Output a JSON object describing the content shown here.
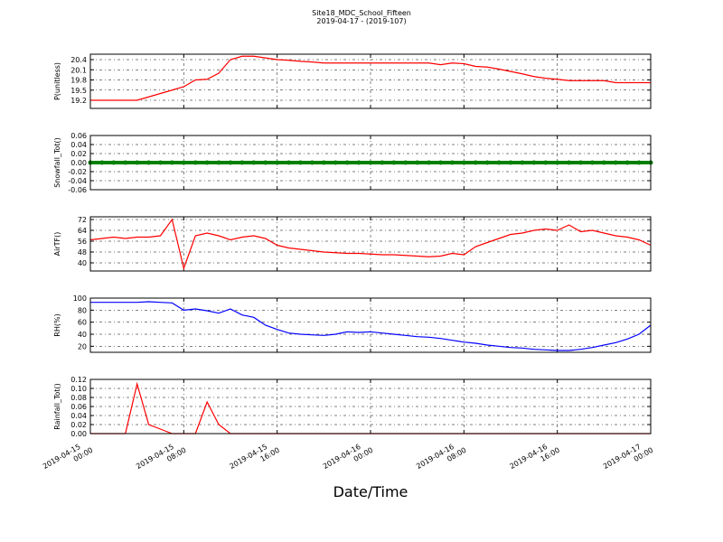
{
  "figure": {
    "title": "Site18_MDC_School_Fifteen",
    "subtitle": "2019-04-17 - (2019-107)",
    "xlabel": "Date/Time"
  },
  "chart_data": [
    {
      "type": "line",
      "ylabel": "P(unitless)",
      "color": "#ff0000",
      "x": [
        "2019-04-15 00:00",
        "2019-04-15 01:00",
        "2019-04-15 02:00",
        "2019-04-15 03:00",
        "2019-04-15 04:00",
        "2019-04-15 05:00",
        "2019-04-15 06:00",
        "2019-04-15 07:00",
        "2019-04-15 08:00",
        "2019-04-15 09:00",
        "2019-04-15 10:00",
        "2019-04-15 11:00",
        "2019-04-15 12:00",
        "2019-04-15 13:00",
        "2019-04-15 14:00",
        "2019-04-15 15:00",
        "2019-04-15 16:00",
        "2019-04-15 17:00",
        "2019-04-15 18:00",
        "2019-04-15 19:00",
        "2019-04-15 20:00",
        "2019-04-15 21:00",
        "2019-04-15 22:00",
        "2019-04-15 23:00",
        "2019-04-16 00:00",
        "2019-04-16 01:00",
        "2019-04-16 02:00",
        "2019-04-16 03:00",
        "2019-04-16 04:00",
        "2019-04-16 05:00",
        "2019-04-16 06:00",
        "2019-04-16 07:00",
        "2019-04-16 08:00",
        "2019-04-16 09:00",
        "2019-04-16 10:00",
        "2019-04-16 11:00",
        "2019-04-16 12:00",
        "2019-04-16 13:00",
        "2019-04-16 14:00",
        "2019-04-16 15:00",
        "2019-04-16 16:00",
        "2019-04-16 17:00",
        "2019-04-16 18:00",
        "2019-04-16 19:00",
        "2019-04-16 20:00",
        "2019-04-16 21:00",
        "2019-04-16 22:00",
        "2019-04-16 23:00",
        "2019-04-17 00:00"
      ],
      "values": [
        19.2,
        19.2,
        19.2,
        19.2,
        19.2,
        19.3,
        19.4,
        19.5,
        19.6,
        19.8,
        19.82,
        20.0,
        20.4,
        20.5,
        20.5,
        20.45,
        20.4,
        20.38,
        20.35,
        20.33,
        20.3,
        20.3,
        20.3,
        20.3,
        20.3,
        20.3,
        20.3,
        20.3,
        20.3,
        20.3,
        20.25,
        20.3,
        20.28,
        20.2,
        20.18,
        20.12,
        20.05,
        19.98,
        19.9,
        19.85,
        19.82,
        19.78,
        19.78,
        19.78,
        19.78,
        19.72,
        19.72,
        19.72,
        19.72
      ],
      "xlim": [
        "2019-04-15 00:00",
        "2019-04-17 00:00"
      ],
      "xticks": [
        "2019-04-15 00:00",
        "2019-04-15 08:00",
        "2019-04-15 16:00",
        "2019-04-16 00:00",
        "2019-04-16 08:00",
        "2019-04-16 16:00",
        "2019-04-17 00:00"
      ],
      "ylim": [
        18.96,
        20.56
      ],
      "yticks": [
        19.2,
        19.5,
        19.8,
        20.1,
        20.4
      ],
      "grid": true
    },
    {
      "type": "scatter",
      "ylabel": "Snowfall_Tot()",
      "color": "#008000",
      "x": [
        "2019-04-15 00:00",
        "2019-04-15 01:00",
        "2019-04-15 02:00",
        "2019-04-15 03:00",
        "2019-04-15 04:00",
        "2019-04-15 05:00",
        "2019-04-15 06:00",
        "2019-04-15 07:00",
        "2019-04-15 08:00",
        "2019-04-15 09:00",
        "2019-04-15 10:00",
        "2019-04-15 11:00",
        "2019-04-15 12:00",
        "2019-04-15 13:00",
        "2019-04-15 14:00",
        "2019-04-15 15:00",
        "2019-04-15 16:00",
        "2019-04-15 17:00",
        "2019-04-15 18:00",
        "2019-04-15 19:00",
        "2019-04-15 20:00",
        "2019-04-15 21:00",
        "2019-04-15 22:00",
        "2019-04-15 23:00",
        "2019-04-16 00:00",
        "2019-04-16 01:00",
        "2019-04-16 02:00",
        "2019-04-16 03:00",
        "2019-04-16 04:00",
        "2019-04-16 05:00",
        "2019-04-16 06:00",
        "2019-04-16 07:00",
        "2019-04-16 08:00",
        "2019-04-16 09:00",
        "2019-04-16 10:00",
        "2019-04-16 11:00",
        "2019-04-16 12:00",
        "2019-04-16 13:00",
        "2019-04-16 14:00",
        "2019-04-16 15:00",
        "2019-04-16 16:00",
        "2019-04-16 17:00",
        "2019-04-16 18:00",
        "2019-04-16 19:00",
        "2019-04-16 20:00",
        "2019-04-16 21:00",
        "2019-04-16 22:00",
        "2019-04-16 23:00",
        "2019-04-17 00:00"
      ],
      "values": [
        0,
        0,
        0,
        0,
        0,
        0,
        0,
        0,
        0,
        0,
        0,
        0,
        0,
        0,
        0,
        0,
        0,
        0,
        0,
        0,
        0,
        0,
        0,
        0,
        0,
        0,
        0,
        0,
        0,
        0,
        0,
        0,
        0,
        0,
        0,
        0,
        0,
        0,
        0,
        0,
        0,
        0,
        0,
        0,
        0,
        0,
        0,
        0,
        0
      ],
      "xlim": [
        "2019-04-15 00:00",
        "2019-04-17 00:00"
      ],
      "xticks": [
        "2019-04-15 00:00",
        "2019-04-15 08:00",
        "2019-04-15 16:00",
        "2019-04-16 00:00",
        "2019-04-16 08:00",
        "2019-04-16 16:00",
        "2019-04-17 00:00"
      ],
      "ylim": [
        -0.06,
        0.06
      ],
      "yticks": [
        -0.06,
        -0.04,
        -0.02,
        {
          "value": 0,
          "label": "0.00"
        },
        0.02,
        0.04,
        0.06
      ],
      "grid": true
    },
    {
      "type": "line",
      "ylabel": "AirTF()",
      "color": "#ff0000",
      "x": [
        "2019-04-15 00:00",
        "2019-04-15 01:00",
        "2019-04-15 02:00",
        "2019-04-15 03:00",
        "2019-04-15 04:00",
        "2019-04-15 05:00",
        "2019-04-15 06:00",
        "2019-04-15 07:00",
        "2019-04-15 08:00",
        "2019-04-15 09:00",
        "2019-04-15 10:00",
        "2019-04-15 11:00",
        "2019-04-15 12:00",
        "2019-04-15 13:00",
        "2019-04-15 14:00",
        "2019-04-15 15:00",
        "2019-04-15 16:00",
        "2019-04-15 17:00",
        "2019-04-15 18:00",
        "2019-04-15 19:00",
        "2019-04-15 20:00",
        "2019-04-15 21:00",
        "2019-04-15 22:00",
        "2019-04-15 23:00",
        "2019-04-16 00:00",
        "2019-04-16 01:00",
        "2019-04-16 02:00",
        "2019-04-16 03:00",
        "2019-04-16 04:00",
        "2019-04-16 05:00",
        "2019-04-16 06:00",
        "2019-04-16 07:00",
        "2019-04-16 08:00",
        "2019-04-16 09:00",
        "2019-04-16 10:00",
        "2019-04-16 11:00",
        "2019-04-16 12:00",
        "2019-04-16 13:00",
        "2019-04-16 14:00",
        "2019-04-16 15:00",
        "2019-04-16 16:00",
        "2019-04-16 17:00",
        "2019-04-16 18:00",
        "2019-04-16 19:00",
        "2019-04-16 20:00",
        "2019-04-16 21:00",
        "2019-04-16 22:00",
        "2019-04-16 23:00",
        "2019-04-17 00:00"
      ],
      "values": [
        57,
        58,
        59,
        58,
        59,
        59,
        60,
        72,
        36,
        60,
        62,
        60,
        57,
        59,
        60,
        58,
        53,
        51,
        50,
        49,
        48,
        47.5,
        47,
        47,
        46.5,
        46,
        46,
        45.5,
        45,
        44.5,
        45,
        47,
        46,
        52,
        55,
        58,
        61,
        62,
        64,
        65,
        64,
        68,
        63,
        64,
        62,
        60,
        59,
        57,
        53
      ],
      "xlim": [
        "2019-04-15 00:00",
        "2019-04-17 00:00"
      ],
      "xticks": [
        "2019-04-15 00:00",
        "2019-04-15 08:00",
        "2019-04-15 16:00",
        "2019-04-16 00:00",
        "2019-04-16 08:00",
        "2019-04-16 16:00",
        "2019-04-17 00:00"
      ],
      "ylim": [
        34,
        74
      ],
      "yticks": [
        40,
        48,
        56,
        64,
        72
      ],
      "grid": true
    },
    {
      "type": "line",
      "ylabel": "RH(%)",
      "color": "#0000ff",
      "x": [
        "2019-04-15 00:00",
        "2019-04-15 01:00",
        "2019-04-15 02:00",
        "2019-04-15 03:00",
        "2019-04-15 04:00",
        "2019-04-15 05:00",
        "2019-04-15 06:00",
        "2019-04-15 07:00",
        "2019-04-15 08:00",
        "2019-04-15 09:00",
        "2019-04-15 10:00",
        "2019-04-15 11:00",
        "2019-04-15 12:00",
        "2019-04-15 13:00",
        "2019-04-15 14:00",
        "2019-04-15 15:00",
        "2019-04-15 16:00",
        "2019-04-15 17:00",
        "2019-04-15 18:00",
        "2019-04-15 19:00",
        "2019-04-15 20:00",
        "2019-04-15 21:00",
        "2019-04-15 22:00",
        "2019-04-15 23:00",
        "2019-04-16 00:00",
        "2019-04-16 01:00",
        "2019-04-16 02:00",
        "2019-04-16 03:00",
        "2019-04-16 04:00",
        "2019-04-16 05:00",
        "2019-04-16 06:00",
        "2019-04-16 07:00",
        "2019-04-16 08:00",
        "2019-04-16 09:00",
        "2019-04-16 10:00",
        "2019-04-16 11:00",
        "2019-04-16 12:00",
        "2019-04-16 13:00",
        "2019-04-16 14:00",
        "2019-04-16 15:00",
        "2019-04-16 16:00",
        "2019-04-16 17:00",
        "2019-04-16 18:00",
        "2019-04-16 19:00",
        "2019-04-16 20:00",
        "2019-04-16 21:00",
        "2019-04-16 22:00",
        "2019-04-16 23:00",
        "2019-04-17 00:00"
      ],
      "values": [
        93,
        93,
        93,
        93,
        93,
        94,
        93,
        92,
        80,
        82,
        79,
        75,
        82,
        72,
        68,
        55,
        48,
        42,
        40,
        39,
        38,
        40,
        44,
        43,
        44,
        42,
        40,
        38,
        36,
        35,
        33,
        30,
        27,
        25,
        22,
        20,
        18,
        17,
        15,
        14,
        13,
        13,
        15,
        18,
        22,
        26,
        32,
        40,
        55
      ],
      "xlim": [
        "2019-04-15 00:00",
        "2019-04-17 00:00"
      ],
      "xticks": [
        "2019-04-15 00:00",
        "2019-04-15 08:00",
        "2019-04-15 16:00",
        "2019-04-16 00:00",
        "2019-04-16 08:00",
        "2019-04-16 16:00",
        "2019-04-17 00:00"
      ],
      "ylim": [
        10,
        100
      ],
      "yticks": [
        20,
        40,
        60,
        80,
        100
      ],
      "grid": true
    },
    {
      "type": "line",
      "ylabel": "Rainfall_Tot()",
      "color": "#ff0000",
      "x": [
        "2019-04-15 00:00",
        "2019-04-15 01:00",
        "2019-04-15 02:00",
        "2019-04-15 03:00",
        "2019-04-15 04:00",
        "2019-04-15 05:00",
        "2019-04-15 06:00",
        "2019-04-15 07:00",
        "2019-04-15 08:00",
        "2019-04-15 09:00",
        "2019-04-15 10:00",
        "2019-04-15 11:00",
        "2019-04-15 12:00",
        "2019-04-15 13:00",
        "2019-04-15 14:00",
        "2019-04-15 15:00",
        "2019-04-15 16:00",
        "2019-04-15 17:00",
        "2019-04-15 18:00",
        "2019-04-15 19:00",
        "2019-04-15 20:00",
        "2019-04-15 21:00",
        "2019-04-15 22:00",
        "2019-04-15 23:00",
        "2019-04-16 00:00",
        "2019-04-16 01:00",
        "2019-04-16 02:00",
        "2019-04-16 03:00",
        "2019-04-16 04:00",
        "2019-04-16 05:00",
        "2019-04-16 06:00",
        "2019-04-16 07:00",
        "2019-04-16 08:00",
        "2019-04-16 09:00",
        "2019-04-16 10:00",
        "2019-04-16 11:00",
        "2019-04-16 12:00",
        "2019-04-16 13:00",
        "2019-04-16 14:00",
        "2019-04-16 15:00",
        "2019-04-16 16:00",
        "2019-04-16 17:00",
        "2019-04-16 18:00",
        "2019-04-16 19:00",
        "2019-04-16 20:00",
        "2019-04-16 21:00",
        "2019-04-16 22:00",
        "2019-04-16 23:00",
        "2019-04-17 00:00"
      ],
      "values": [
        0,
        0,
        0,
        0,
        0.11,
        0.02,
        0.01,
        0,
        0,
        0,
        0.07,
        0.02,
        0,
        0,
        0,
        0,
        0,
        0,
        0,
        0,
        0,
        0,
        0,
        0,
        0,
        0,
        0,
        0,
        0,
        0,
        0,
        0,
        0,
        0,
        0,
        0,
        0,
        0,
        0,
        0,
        0,
        0,
        0,
        0,
        0,
        0,
        0,
        0,
        0
      ],
      "xlim": [
        "2019-04-15 00:00",
        "2019-04-17 00:00"
      ],
      "xticks": [
        "2019-04-15 00:00",
        "2019-04-15 08:00",
        "2019-04-15 16:00",
        "2019-04-16 00:00",
        "2019-04-16 08:00",
        "2019-04-16 16:00",
        "2019-04-17 00:00"
      ],
      "xtick_labels": true,
      "ylim": [
        0,
        0.12
      ],
      "yticks": [
        {
          "value": 0,
          "label": "0.00"
        },
        0.02,
        0.04,
        0.06,
        0.08,
        {
          "value": 0.1,
          "label": "0.10"
        },
        0.12
      ],
      "grid": true
    }
  ]
}
